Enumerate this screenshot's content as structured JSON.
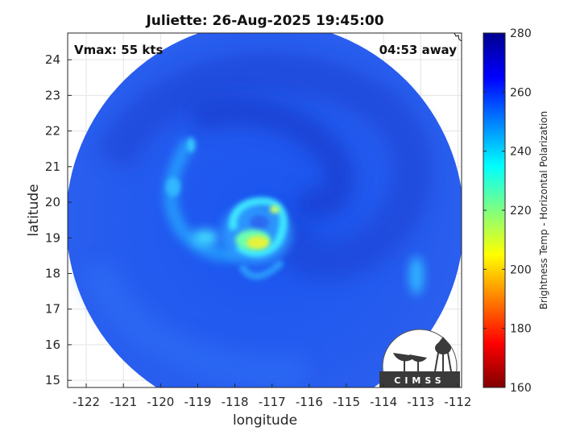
{
  "chart_data": {
    "type": "heatmap",
    "title": "Juliette: 26-Aug-2025 19:45:00",
    "xlabel": "longitude",
    "ylabel": "latitude",
    "xlim": [
      -122.5,
      -111.9
    ],
    "ylim": [
      14.8,
      24.75
    ],
    "x_ticks": [
      -122,
      -121,
      -120,
      -119,
      -118,
      -117,
      -116,
      -115,
      -114,
      -113,
      -112
    ],
    "y_ticks": [
      15,
      16,
      17,
      18,
      19,
      20,
      21,
      22,
      23,
      24
    ],
    "grid": true,
    "annotations": {
      "intensity": "Vmax: 55 kts",
      "time_offset": "04:53 away"
    },
    "storm_center": {
      "lon": -117.2,
      "lat": 19.2
    },
    "swath_center": {
      "lon": -117.3,
      "lat": 19.75
    },
    "colorbar": {
      "label": "Brightness Temp - Horizontal Polarization",
      "range": [
        160,
        280
      ],
      "ticks": [
        160,
        180,
        200,
        220,
        240,
        260,
        280
      ],
      "colormap": "jet"
    },
    "features": [
      {
        "name": "eyewall",
        "lon": -117.3,
        "lat": 18.9,
        "min_tb": 205
      },
      {
        "name": "convective-cell",
        "lon": -117.0,
        "lat": 19.85,
        "min_tb": 220
      },
      {
        "name": "west-rainband",
        "lon": -119.6,
        "lat": 19.6,
        "min_tb": 236
      },
      {
        "name": "east-cell",
        "lon": -112.7,
        "lat": 18.1,
        "min_tb": 240
      }
    ]
  },
  "logo": {
    "text": "CIMSS"
  }
}
